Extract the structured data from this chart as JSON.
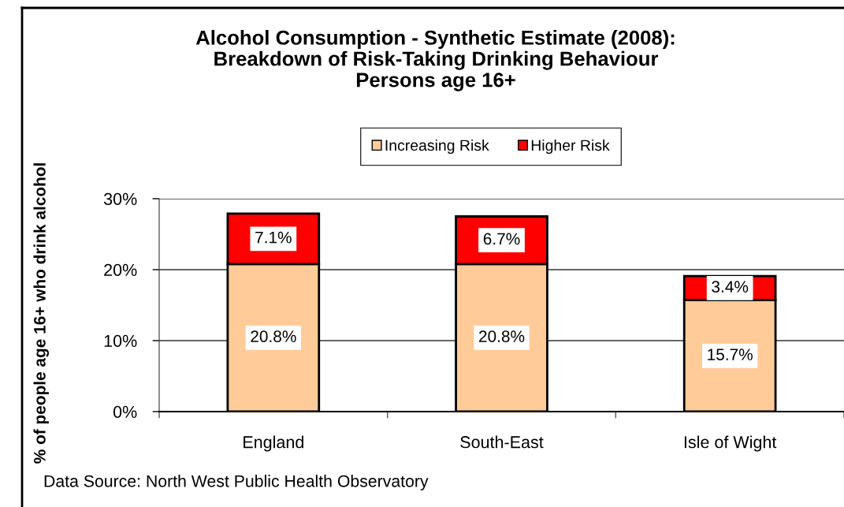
{
  "chart_data": {
    "type": "bar",
    "title": "Alcohol Consumption - Synthetic Estimate (2008):\nBreakdown of Risk-Taking Drinking Behaviour\nPersons age 16+",
    "ylabel": "% of people age 16+ who drink alcohol",
    "annotations": [
      "Data Source: North West Public Health Observatory"
    ],
    "categories": [
      "England",
      "South-East",
      "Isle of Wight"
    ],
    "series": [
      {
        "name": "Increasing Risk",
        "color": "#ffcc99",
        "values": [
          20.8,
          20.8,
          15.7
        ],
        "value_labels": [
          "20.8%",
          "20.8%",
          "15.7%"
        ]
      },
      {
        "name": "Higher Risk",
        "color": "#ff0000",
        "values": [
          7.1,
          6.7,
          3.4
        ],
        "value_labels": [
          "7.1%",
          "6.7%",
          "3.4%"
        ]
      }
    ],
    "stacked": true,
    "ylim": [
      0,
      30
    ],
    "yticks": [
      {
        "value": 0,
        "label": "0%"
      },
      {
        "value": 10,
        "label": "10%"
      },
      {
        "value": 20,
        "label": "20%"
      },
      {
        "value": 30,
        "label": "30%"
      }
    ],
    "grid": "y",
    "legend": "top"
  }
}
